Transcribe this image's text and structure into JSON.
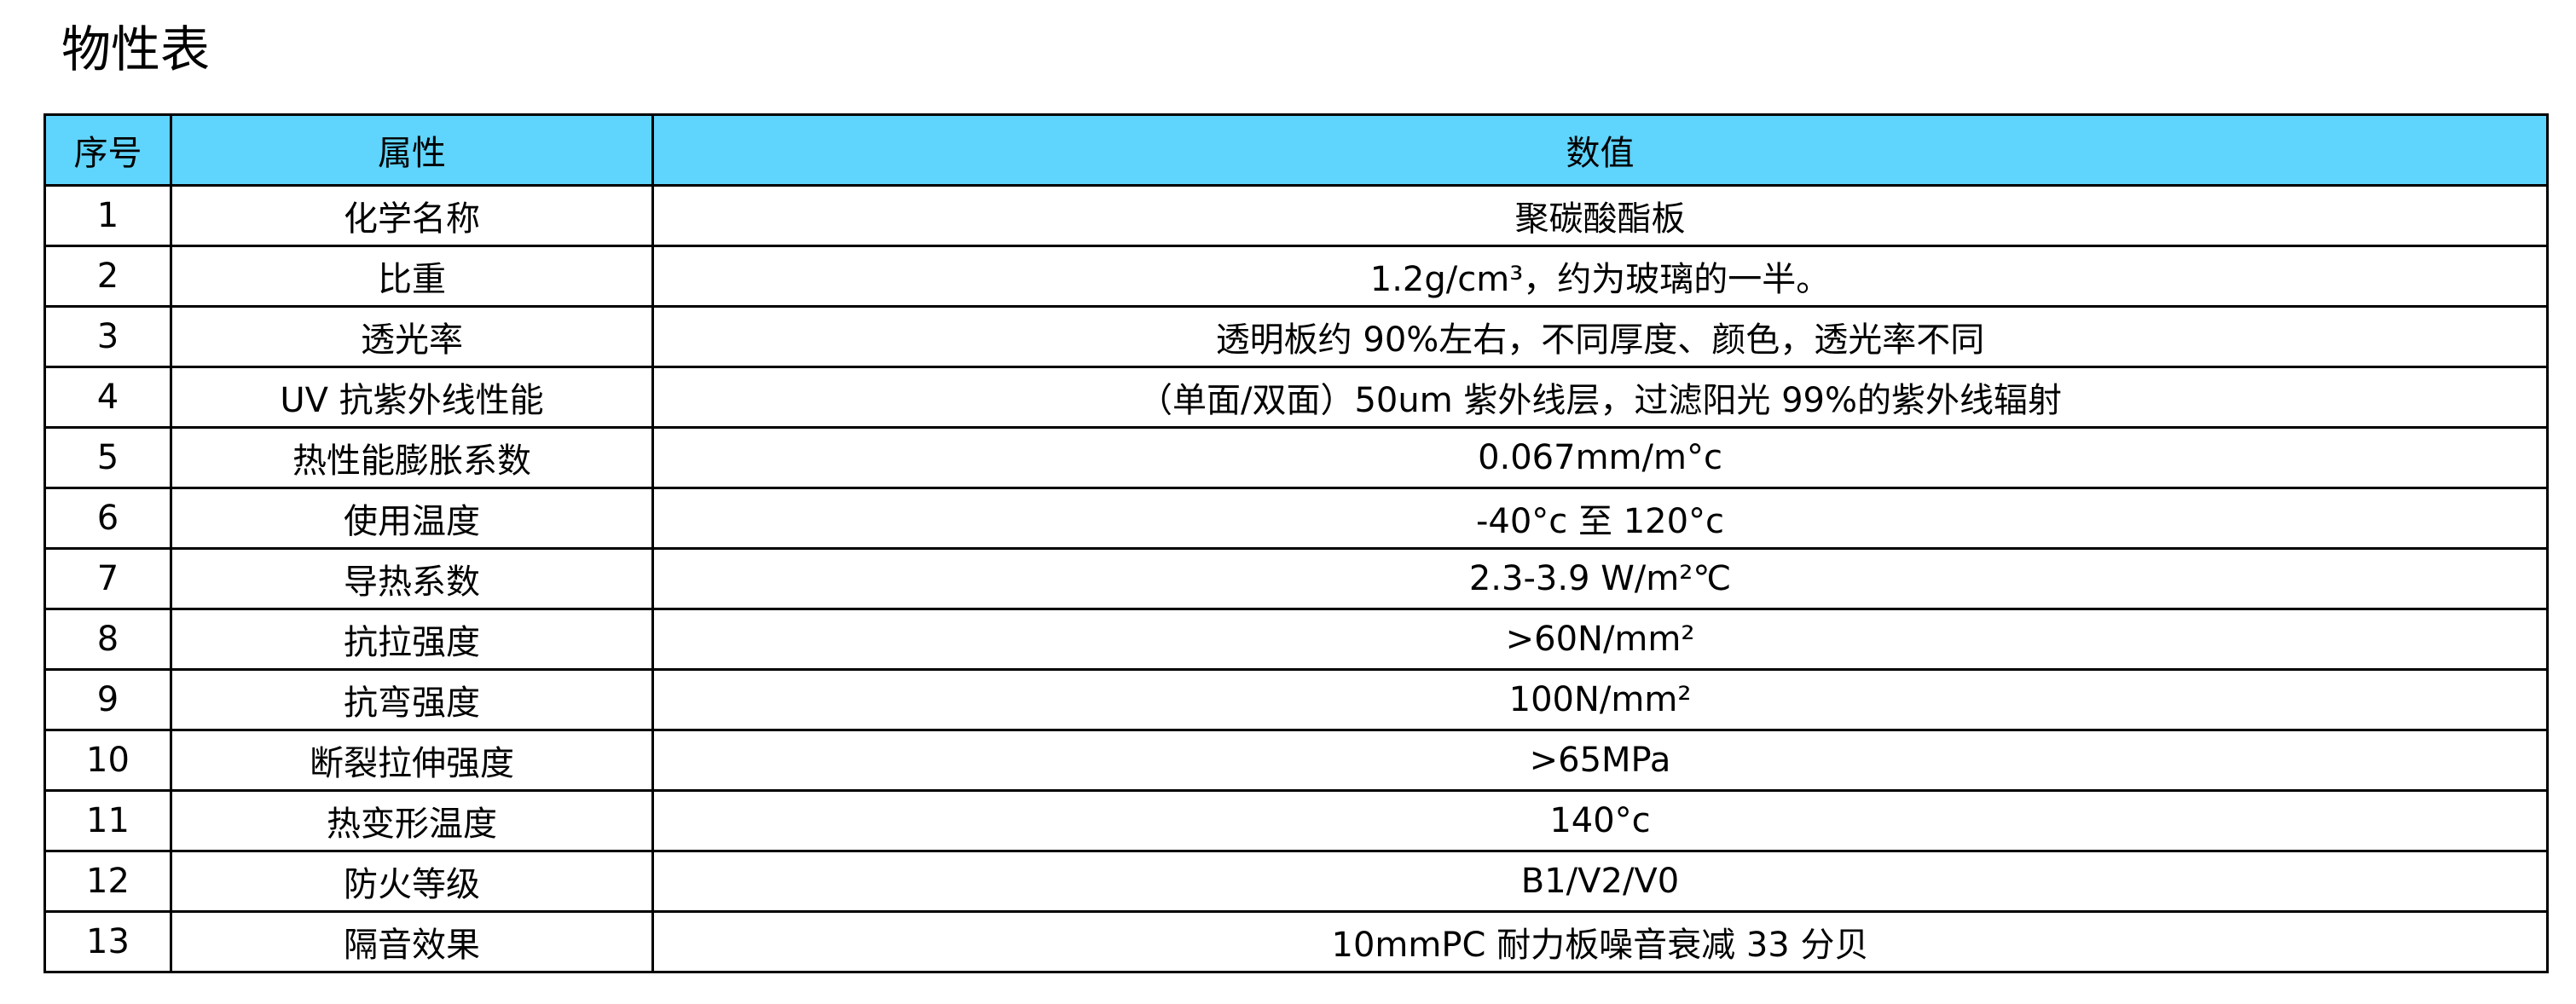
{
  "title": "物性表",
  "header_color": "#5fd4fc",
  "table": {
    "headers": [
      "序号",
      "属性",
      "数值"
    ],
    "rows": [
      [
        "1",
        "化学名称",
        "聚碳酸酯板"
      ],
      [
        "2",
        "比重",
        "1.2g/cm³，约为玻璃的一半。"
      ],
      [
        "3",
        "透光率",
        "透明板约 90%左右，不同厚度、颜色，透光率不同"
      ],
      [
        "4",
        "UV 抗紫外线性能",
        "（单面/双面）50um 紫外线层，过滤阳光 99%的紫外线辐射"
      ],
      [
        "5",
        "热性能膨胀系数",
        "0.067mm/m°c"
      ],
      [
        "6",
        "使用温度",
        "-40°c  至  120°c"
      ],
      [
        "7",
        "导热系数",
        "2.3-3.9 W/m²℃"
      ],
      [
        "8",
        "抗拉强度",
        ">60N/mm²"
      ],
      [
        "9",
        "抗弯强度",
        "100N/mm²"
      ],
      [
        "10",
        "断裂拉伸强度",
        ">65MPa"
      ],
      [
        "11",
        "热变形温度",
        "140°c"
      ],
      [
        "12",
        "防火等级",
        "B1/V2/V0"
      ],
      [
        "13",
        "隔音效果",
        "10mmPC 耐力板噪音衰减 33 分贝"
      ]
    ]
  }
}
